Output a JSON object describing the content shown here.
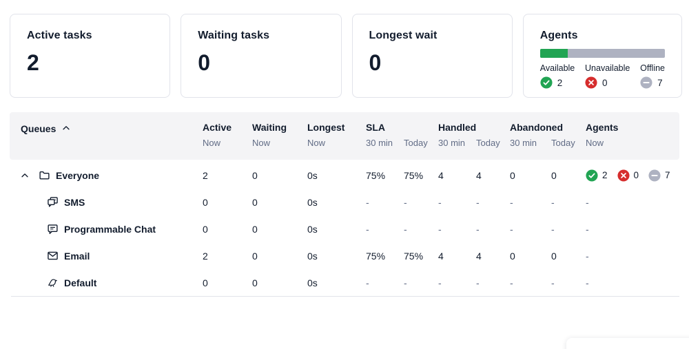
{
  "colors": {
    "text": "#121C2D",
    "text_secondary": "#606B85",
    "border": "#E1E3EA",
    "table_header_bg": "#F4F4F6",
    "status_green": "#21A453",
    "status_red": "#D62D2D",
    "status_gray": "#AEB2C1"
  },
  "summary_cards": [
    {
      "title": "Active tasks",
      "value": "2"
    },
    {
      "title": "Waiting tasks",
      "value": "0"
    },
    {
      "title": "Longest wait",
      "value": "0"
    }
  ],
  "agents_card": {
    "title": "Agents",
    "available_pct": 22,
    "statuses": [
      {
        "label": "Available",
        "count": "2",
        "icon": "check-circle-icon"
      },
      {
        "label": "Unavailable",
        "count": "0",
        "icon": "x-circle-icon"
      },
      {
        "label": "Offline",
        "count": "7",
        "icon": "minus-circle-icon"
      }
    ]
  },
  "table": {
    "queues_label": "Queues",
    "sort_direction": "ascending",
    "column_groups": [
      {
        "label": "Active",
        "subs": [
          "Now"
        ]
      },
      {
        "label": "Waiting",
        "subs": [
          "Now"
        ]
      },
      {
        "label": "Longest",
        "subs": [
          "Now"
        ]
      },
      {
        "label": "SLA",
        "subs": [
          "30 min",
          "Today"
        ]
      },
      {
        "label": "Handled",
        "subs": [
          "30 min",
          "Today"
        ]
      },
      {
        "label": "Abandoned",
        "subs": [
          "30 min",
          "Today"
        ]
      },
      {
        "label": "Agents",
        "subs": [
          "Now"
        ]
      }
    ],
    "rows": [
      {
        "name": "Everyone",
        "icon": "folder",
        "level": 0,
        "expandable": true,
        "cells": [
          "2",
          "0",
          "0s",
          "75%",
          "75%",
          "4",
          "4",
          "0",
          "0"
        ],
        "agents": {
          "available": "2",
          "unavailable": "0",
          "offline": "7"
        }
      },
      {
        "name": "SMS",
        "icon": "sms",
        "level": 1,
        "cells": [
          "0",
          "0",
          "0s",
          "-",
          "-",
          "-",
          "-",
          "-",
          "-"
        ],
        "agents": "-"
      },
      {
        "name": "Programmable Chat",
        "icon": "chat",
        "level": 1,
        "cells": [
          "0",
          "0",
          "0s",
          "-",
          "-",
          "-",
          "-",
          "-",
          "-"
        ],
        "agents": "-"
      },
      {
        "name": "Email",
        "icon": "email",
        "level": 1,
        "cells": [
          "2",
          "0",
          "0s",
          "75%",
          "75%",
          "4",
          "4",
          "0",
          "0"
        ],
        "agents": "-"
      },
      {
        "name": "Default",
        "icon": "bird",
        "level": 1,
        "cells": [
          "0",
          "0",
          "0s",
          "-",
          "-",
          "-",
          "-",
          "-",
          "-"
        ],
        "agents": "-"
      }
    ]
  }
}
